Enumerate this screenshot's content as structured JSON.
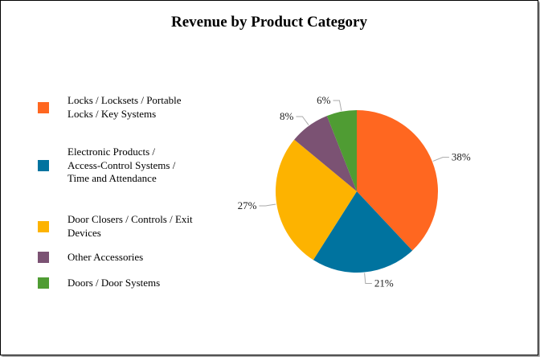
{
  "chart_data": {
    "type": "pie",
    "title": "Revenue by Product Category",
    "legend_position": "left",
    "start": "top",
    "direction": "clockwise",
    "slices": [
      {
        "label": "Locks / Locksets / Portable Locks / Key Systems",
        "value": 38,
        "value_label": "38%",
        "color": "#FF6720"
      },
      {
        "label": "Electronic Products / Access-Control Systems / Time and Attendance",
        "value": 21,
        "value_label": "21%",
        "color": "#00739F"
      },
      {
        "label": "Door Closers / Controls / Exit Devices",
        "value": 27,
        "value_label": "27%",
        "color": "#FDB300"
      },
      {
        "label": "Other Accessories",
        "value": 8,
        "value_label": "8%",
        "color": "#7B5273"
      },
      {
        "label": "Doors / Door Systems",
        "value": 6,
        "value_label": "6%",
        "color": "#4F9C33"
      }
    ]
  }
}
